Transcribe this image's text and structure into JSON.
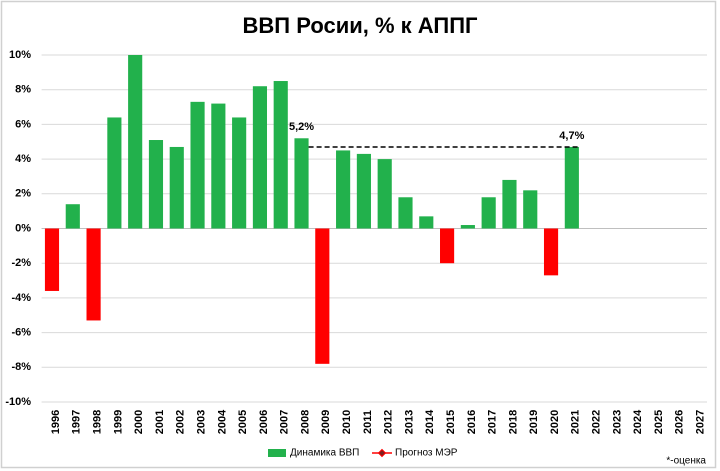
{
  "chart_data": {
    "type": "bar",
    "title": "ВВП Росии, % к АППГ",
    "categories": [
      "1996",
      "1997",
      "1998",
      "1999",
      "2000",
      "2001",
      "2002",
      "2003",
      "2004",
      "2005",
      "2006",
      "2007",
      "2008",
      "2009",
      "2010",
      "2011",
      "2012",
      "2013",
      "2014",
      "2015",
      "2016",
      "2017",
      "2018",
      "2019",
      "2020",
      "2021",
      "2022",
      "2023",
      "2024",
      "2025",
      "2026",
      "2027"
    ],
    "series": [
      {
        "name": "Динамика ВВП",
        "color": "#22b14c",
        "negative_color": "#ff0000",
        "values": [
          -3.6,
          1.4,
          -5.3,
          6.4,
          10.0,
          5.1,
          4.7,
          7.3,
          7.2,
          6.4,
          8.2,
          8.5,
          5.2,
          -7.8,
          4.5,
          4.3,
          4.0,
          1.8,
          0.7,
          -2.0,
          0.2,
          1.8,
          2.8,
          2.2,
          -2.7,
          4.7,
          null,
          null,
          null,
          null,
          null,
          null
        ],
        "value_labels": [
          null,
          null,
          null,
          null,
          null,
          null,
          null,
          null,
          null,
          null,
          null,
          null,
          "5,2%",
          null,
          null,
          null,
          null,
          null,
          null,
          null,
          null,
          null,
          null,
          null,
          null,
          "4,7%",
          null,
          null,
          null,
          null,
          null,
          null
        ]
      },
      {
        "name": "Прогноз МЭР",
        "color": "#ff0000",
        "values": [
          null,
          null,
          null,
          null,
          null,
          null,
          null,
          null,
          null,
          null,
          null,
          null,
          null,
          null,
          null,
          null,
          null,
          null,
          null,
          null,
          null,
          null,
          null,
          null,
          null,
          null,
          null,
          null,
          null,
          null,
          null,
          null
        ]
      }
    ],
    "reference_line": {
      "y": 4.7,
      "from": "2008",
      "to": "2021"
    },
    "ylim": [
      -10,
      10
    ],
    "yticks": [
      {
        "value": -10,
        "label": "-10%"
      },
      {
        "value": -8,
        "label": "-8%"
      },
      {
        "value": -6,
        "label": "-6%"
      },
      {
        "value": -4,
        "label": "-4%"
      },
      {
        "value": -2,
        "label": "-2%"
      },
      {
        "value": 0,
        "label": "0%"
      },
      {
        "value": 2,
        "label": "2%"
      },
      {
        "value": 4,
        "label": "4%"
      },
      {
        "value": 6,
        "label": "6%"
      },
      {
        "value": 8,
        "label": "8%"
      },
      {
        "value": 10,
        "label": "10%"
      }
    ],
    "grid": true,
    "note": "*-оценка"
  }
}
